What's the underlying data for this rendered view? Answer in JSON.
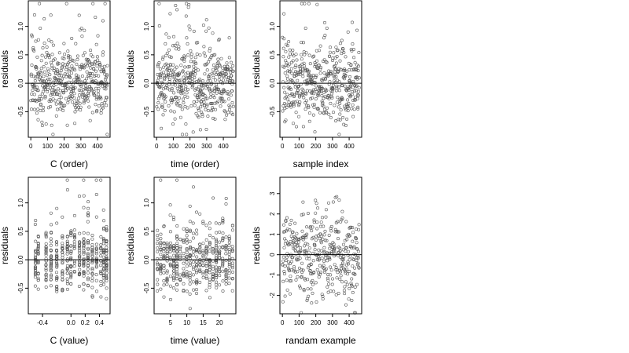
{
  "chart_data": [
    {
      "type": "scatter",
      "xlabel": "C (order)",
      "ylabel": "residuals",
      "xlim": [
        -15,
        475
      ],
      "ylim": [
        -0.95,
        1.45
      ],
      "xticks": [
        0,
        100,
        200,
        300,
        400
      ],
      "yticks": [
        -0.5,
        0.0,
        0.5,
        1.0
      ],
      "point_color": "#555555",
      "seed": 11,
      "spread": 0.32,
      "n": 460,
      "hline": 0,
      "mode": "order"
    },
    {
      "type": "scatter",
      "xlabel": "time (order)",
      "ylabel": "residuals",
      "xlim": [
        -15,
        475
      ],
      "ylim": [
        -0.95,
        1.45
      ],
      "xticks": [
        0,
        100,
        200,
        300,
        400
      ],
      "yticks": [
        -0.5,
        0.0,
        0.5,
        1.0
      ],
      "point_color": "#555555",
      "seed": 23,
      "spread": 0.32,
      "n": 460,
      "hline": 0,
      "mode": "order"
    },
    {
      "type": "scatter",
      "xlabel": "sample index",
      "ylabel": "residuals",
      "xlim": [
        -15,
        475
      ],
      "ylim": [
        -0.95,
        1.45
      ],
      "xticks": [
        0,
        100,
        200,
        300,
        400
      ],
      "yticks": [
        -0.5,
        0.0,
        0.5,
        1.0
      ],
      "point_color": "#555555",
      "seed": 37,
      "spread": 0.32,
      "n": 460,
      "hline": 0,
      "mode": "order"
    },
    {
      "type": "scatter",
      "xlabel": "C (value)",
      "ylabel": "residuals",
      "xlim": [
        -0.6,
        0.55
      ],
      "ylim": [
        -0.95,
        1.45
      ],
      "xticks": [
        -0.4,
        0.0,
        0.2,
        0.4
      ],
      "xtick_labels": [
        "-0.4",
        "0.0",
        "0.2",
        "0.4"
      ],
      "yticks": [
        -0.5,
        0.0,
        0.5,
        1.0
      ],
      "point_color": "#555555",
      "seed": 41,
      "spread": 0.3,
      "n": 460,
      "hline": 0,
      "mode": "columns",
      "columns": [
        -0.5,
        -0.46,
        -0.35,
        -0.28,
        -0.2,
        -0.12,
        -0.05,
        0.0,
        0.05,
        0.12,
        0.18,
        0.24,
        0.3,
        0.36,
        0.42,
        0.46,
        0.5
      ]
    },
    {
      "type": "scatter",
      "xlabel": "time (value)",
      "ylabel": "residuals",
      "xlim": [
        0,
        25
      ],
      "ylim": [
        -0.95,
        1.45
      ],
      "xticks": [
        5,
        10,
        15,
        20
      ],
      "yticks": [
        -0.5,
        0.0,
        0.5,
        1.0
      ],
      "point_color": "#555555",
      "seed": 53,
      "spread": 0.3,
      "n": 460,
      "hline": 0,
      "mode": "columns",
      "columns": [
        1,
        2,
        3,
        4,
        5,
        6,
        7,
        8,
        9,
        10,
        11,
        12,
        13,
        14,
        15,
        16,
        17,
        18,
        19,
        20,
        21,
        22,
        23,
        24
      ]
    },
    {
      "type": "scatter",
      "xlabel": "randam example",
      "ylabel": "residuals",
      "xlim": [
        -15,
        475
      ],
      "ylim": [
        -2.9,
        3.8
      ],
      "xticks": [
        0,
        100,
        200,
        300,
        400
      ],
      "yticks": [
        -2,
        -1,
        0,
        1,
        2,
        3
      ],
      "point_color": "#555555",
      "seed": 67,
      "spread": 1.0,
      "n": 400,
      "hline": 0,
      "mode": "order"
    }
  ]
}
